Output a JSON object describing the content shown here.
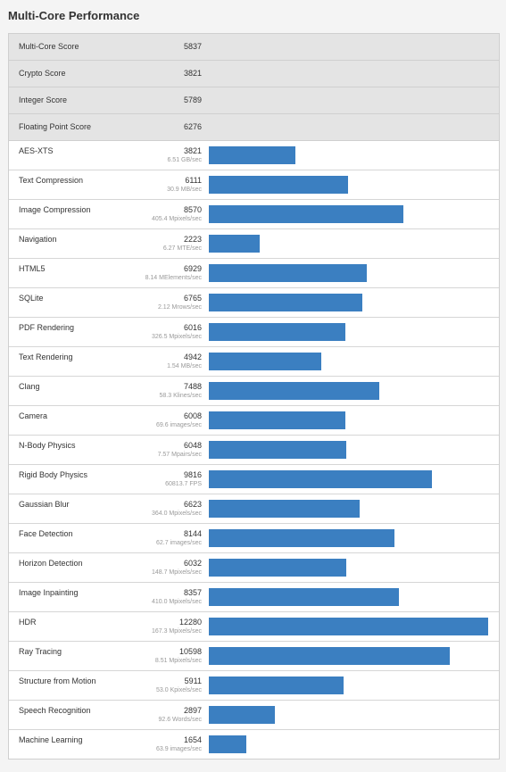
{
  "page_title": "Multi-Core Performance",
  "bar_color": "#3b7fc1",
  "max_score": 12280,
  "summary": [
    {
      "label": "Multi-Core Score",
      "score": "5837"
    },
    {
      "label": "Crypto Score",
      "score": "3821"
    },
    {
      "label": "Integer Score",
      "score": "5789"
    },
    {
      "label": "Floating Point Score",
      "score": "6276"
    }
  ],
  "benchmarks": [
    {
      "name": "AES-XTS",
      "score": "3821",
      "rate": "6.51 GB/sec"
    },
    {
      "name": "Text Compression",
      "score": "6111",
      "rate": "30.9 MB/sec"
    },
    {
      "name": "Image Compression",
      "score": "8570",
      "rate": "405.4 Mpixels/sec"
    },
    {
      "name": "Navigation",
      "score": "2223",
      "rate": "6.27 MTE/sec"
    },
    {
      "name": "HTML5",
      "score": "6929",
      "rate": "8.14 MElements/sec"
    },
    {
      "name": "SQLite",
      "score": "6765",
      "rate": "2.12 Mrows/sec"
    },
    {
      "name": "PDF Rendering",
      "score": "6016",
      "rate": "326.5 Mpixels/sec"
    },
    {
      "name": "Text Rendering",
      "score": "4942",
      "rate": "1.54 MB/sec"
    },
    {
      "name": "Clang",
      "score": "7488",
      "rate": "58.3 Klines/sec"
    },
    {
      "name": "Camera",
      "score": "6008",
      "rate": "69.6 images/sec"
    },
    {
      "name": "N-Body Physics",
      "score": "6048",
      "rate": "7.57 Mpairs/sec"
    },
    {
      "name": "Rigid Body Physics",
      "score": "9816",
      "rate": "60813.7 FPS"
    },
    {
      "name": "Gaussian Blur",
      "score": "6623",
      "rate": "364.0 Mpixels/sec"
    },
    {
      "name": "Face Detection",
      "score": "8144",
      "rate": "62.7 images/sec"
    },
    {
      "name": "Horizon Detection",
      "score": "6032",
      "rate": "148.7 Mpixels/sec"
    },
    {
      "name": "Image Inpainting",
      "score": "8357",
      "rate": "410.0 Mpixels/sec"
    },
    {
      "name": "HDR",
      "score": "12280",
      "rate": "167.3 Mpixels/sec"
    },
    {
      "name": "Ray Tracing",
      "score": "10598",
      "rate": "8.51 Mpixels/sec"
    },
    {
      "name": "Structure from Motion",
      "score": "5911",
      "rate": "53.0 Kpixels/sec"
    },
    {
      "name": "Speech Recognition",
      "score": "2897",
      "rate": "92.6 Words/sec"
    },
    {
      "name": "Machine Learning",
      "score": "1654",
      "rate": "63.9 images/sec"
    }
  ]
}
